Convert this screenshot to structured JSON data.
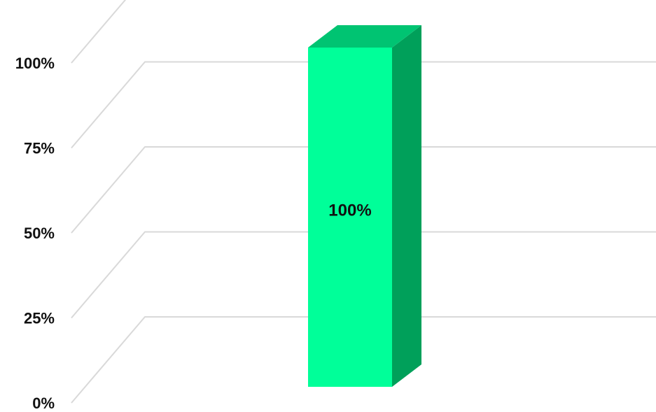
{
  "chart_data": {
    "type": "bar",
    "categories": [
      ""
    ],
    "values": [
      100
    ],
    "data_labels": [
      "100%"
    ],
    "ylim": [
      0,
      100
    ],
    "y_ticks": [
      {
        "value": 0,
        "label": "0%"
      },
      {
        "value": 25,
        "label": "25%"
      },
      {
        "value": 50,
        "label": "50%"
      },
      {
        "value": 75,
        "label": "75%"
      },
      {
        "value": 100,
        "label": "100%"
      }
    ],
    "grid": true,
    "style": "3d-column",
    "colors": {
      "bar_front": "#00ff99",
      "bar_side": "#00a05a",
      "bar_top": "#00c472",
      "gridline": "#d9d9d9",
      "text": "#111111"
    }
  }
}
